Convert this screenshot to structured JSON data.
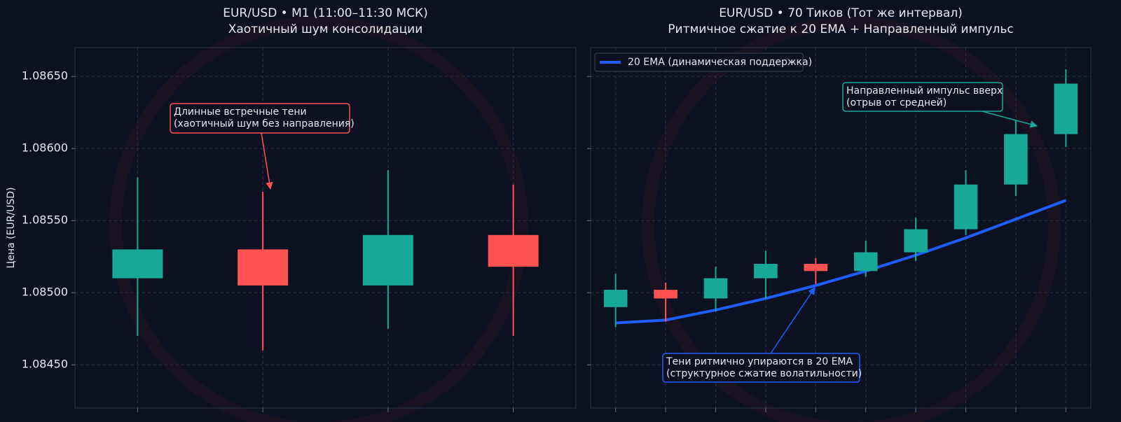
{
  "chart_data": [
    {
      "type": "candlestick",
      "title": "EUR/USD • M1 (11:00–11:30 МСК)",
      "subtitle": "Хаотичный шум консолидации",
      "ylabel": "Цена (EUR/USD)",
      "categories": [
        null,
        null,
        null,
        null
      ],
      "open": [
        1.0851,
        1.0853,
        1.08505,
        1.0854
      ],
      "high": [
        1.0858,
        1.0857,
        1.08585,
        1.08575
      ],
      "low": [
        1.0847,
        1.0846,
        1.08475,
        1.0847
      ],
      "close": [
        1.0853,
        1.08505,
        1.0854,
        1.08518
      ],
      "up_color": "#17a898",
      "down_color": "#ff5252",
      "ylim": [
        1.0842,
        1.0867
      ],
      "yticks": [
        {
          "value": 1.0845,
          "label": "1.08450"
        },
        {
          "value": 1.085,
          "label": "1.08500"
        },
        {
          "value": 1.0855,
          "label": "1.08550"
        },
        {
          "value": 1.086,
          "label": "1.08600"
        },
        {
          "value": 1.0865,
          "label": "1.08650"
        }
      ],
      "grid": true,
      "annotations": [
        {
          "lines": [
            "Длинные встречные тени",
            "(хаотичный шум без направления)"
          ],
          "color": "#ff5252"
        }
      ]
    },
    {
      "type": "candlestick",
      "title": "EUR/USD • 70 Тиков (Тот же интервал)",
      "subtitle": "Ритмичное сжатие к 20 EMA + Направленный импульс",
      "categories": [
        null,
        null,
        null,
        null,
        null,
        null,
        null,
        null,
        null,
        null
      ],
      "open": [
        1.0849,
        1.08502,
        1.08496,
        1.0851,
        1.0852,
        1.08515,
        1.08528,
        1.08544,
        1.08575,
        1.0861
      ],
      "high": [
        1.08513,
        1.08507,
        1.08518,
        1.08529,
        1.08524,
        1.08536,
        1.08552,
        1.08585,
        1.0862,
        1.08655
      ],
      "low": [
        1.08476,
        1.0848,
        1.08487,
        1.08496,
        1.08506,
        1.08511,
        1.08522,
        1.0854,
        1.08567,
        1.08601
      ],
      "close": [
        1.08502,
        1.08496,
        1.0851,
        1.0852,
        1.08515,
        1.08528,
        1.08544,
        1.08575,
        1.0861,
        1.08645
      ],
      "up_color": "#17a898",
      "down_color": "#ff5252",
      "series": [
        {
          "name": "20 EMA (динамическая поддержка)",
          "color": "#1e5eff",
          "values": [
            1.08479,
            1.08481,
            1.08488,
            1.08496,
            1.08505,
            1.08515,
            1.08526,
            1.08538,
            1.08551,
            1.08564
          ]
        }
      ],
      "legend": "upper left",
      "ylim": [
        1.0842,
        1.0867
      ],
      "yticks": [
        1.0845,
        1.085,
        1.0855,
        1.086,
        1.0865
      ],
      "grid": true,
      "annotations": [
        {
          "lines": [
            "Направленный импульс вверх",
            "(отрыв от средней)"
          ],
          "color": "#17a898"
        },
        {
          "lines": [
            "Тени ритмично упираются в 20 EMA",
            "(структурное сжатие волатильности)"
          ],
          "color": "#1e5eff"
        }
      ]
    }
  ]
}
